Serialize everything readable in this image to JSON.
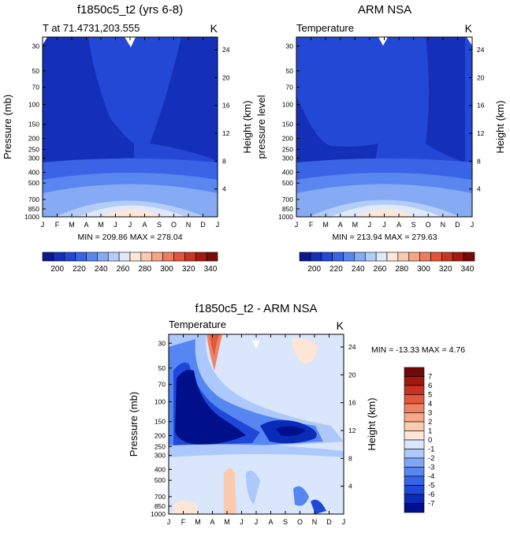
{
  "months": [
    "J",
    "F",
    "M",
    "A",
    "M",
    "J",
    "J",
    "A",
    "S",
    "O",
    "N",
    "D",
    "J"
  ],
  "pressure_ticks": [
    "30",
    "50",
    "70",
    "100",
    "150",
    "200",
    "250",
    "300",
    "400",
    "500",
    "700",
    "850",
    "1000"
  ],
  "pressure_values": [
    30,
    50,
    70,
    100,
    150,
    200,
    250,
    300,
    400,
    500,
    700,
    850,
    1000
  ],
  "height_ticks": [
    "24",
    "20",
    "16",
    "12",
    "8",
    "4"
  ],
  "height_values_km": [
    24,
    20,
    16,
    12,
    8,
    4
  ],
  "chart_data": [
    {
      "type": "heatmap",
      "title": "f1850c5_t2 (yrs 6-8)",
      "left_label": "T at 71.4731,203.555",
      "units": "K",
      "ylabel": "Pressure (mb)",
      "right_ylabel": "Height (km)",
      "stats": "MIN = 209.86  MAX = 278.04",
      "min": 209.86,
      "max": 278.04,
      "colorbar_ticks": [
        "200",
        "220",
        "240",
        "260",
        "280",
        "300",
        "320",
        "340"
      ],
      "colorbar_levels": [
        195,
        200,
        210,
        220,
        230,
        240,
        250,
        260,
        270,
        280,
        290,
        300,
        310,
        320,
        330,
        340,
        345
      ]
    },
    {
      "type": "heatmap",
      "title": "ARM NSA",
      "left_label": "Temperature",
      "units": "K",
      "ylabel": "pressure level",
      "right_ylabel": "Height (km)",
      "stats": "MIN = 213.94  MAX = 279.63",
      "min": 213.94,
      "max": 279.63,
      "colorbar_ticks": [
        "200",
        "220",
        "240",
        "260",
        "280",
        "300",
        "320",
        "340"
      ]
    },
    {
      "type": "heatmap",
      "title": "f1850c5_t2 - ARM NSA",
      "left_label": "Temperature",
      "units": "K",
      "ylabel": "Pressure (mb)",
      "right_ylabel": "Height (km)",
      "stats": "MIN = -13.33  MAX =   4.76",
      "min": -13.33,
      "max": 4.76,
      "colorbar_ticks": [
        "7",
        "6",
        "5",
        "4",
        "3",
        "2",
        "1",
        "0",
        "-1",
        "-2",
        "-3",
        "-4",
        "-5",
        "-6",
        "-7"
      ]
    }
  ],
  "colors": {
    "abs_palette": [
      "#0a1a8c",
      "#1530b8",
      "#2448d6",
      "#3a64e6",
      "#5a86f0",
      "#86aaf4",
      "#b4cdf8",
      "#dfe9fb",
      "#fde8d8",
      "#fbc9ae",
      "#f6a484",
      "#f07c5e",
      "#e2553a",
      "#c93522",
      "#a61a10",
      "#7a0a06"
    ],
    "diff_palette": [
      "#000f8a",
      "#0a2ab8",
      "#1f48d8",
      "#3565e8",
      "#5586f2",
      "#7fa6f6",
      "#adc8fa",
      "#d9e6fc",
      "#fde6d8",
      "#fbcbb0",
      "#f6a888",
      "#ef8262",
      "#e2583a",
      "#c83222",
      "#a01810",
      "#700805"
    ]
  }
}
